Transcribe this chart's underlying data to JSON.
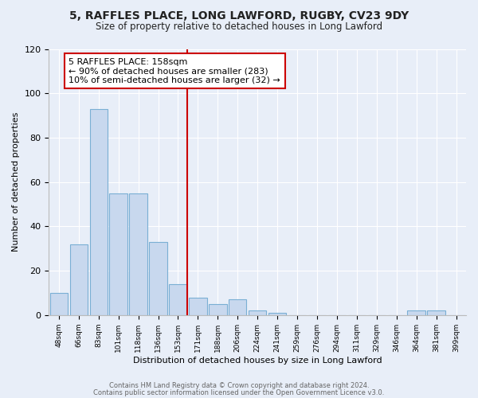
{
  "title": "5, RAFFLES PLACE, LONG LAWFORD, RUGBY, CV23 9DY",
  "subtitle": "Size of property relative to detached houses in Long Lawford",
  "xlabel": "Distribution of detached houses by size in Long Lawford",
  "ylabel": "Number of detached properties",
  "bar_color": "#c8d8ee",
  "bar_edge_color": "#7aafd4",
  "background_color": "#e8eef8",
  "grid_color": "#ffffff",
  "categories": [
    "48sqm",
    "66sqm",
    "83sqm",
    "101sqm",
    "118sqm",
    "136sqm",
    "153sqm",
    "171sqm",
    "188sqm",
    "206sqm",
    "224sqm",
    "241sqm",
    "259sqm",
    "276sqm",
    "294sqm",
    "311sqm",
    "329sqm",
    "346sqm",
    "364sqm",
    "381sqm",
    "399sqm"
  ],
  "values": [
    10,
    32,
    93,
    55,
    55,
    33,
    14,
    8,
    5,
    7,
    2,
    1,
    0,
    0,
    0,
    0,
    0,
    0,
    2,
    2,
    0
  ],
  "vline_x_index": 6,
  "vline_color": "#cc0000",
  "annotation_title": "5 RAFFLES PLACE: 158sqm",
  "annotation_line1": "← 90% of detached houses are smaller (283)",
  "annotation_line2": "10% of semi-detached houses are larger (32) →",
  "ylim": [
    0,
    120
  ],
  "yticks": [
    0,
    20,
    40,
    60,
    80,
    100,
    120
  ],
  "footer1": "Contains HM Land Registry data © Crown copyright and database right 2024.",
  "footer2": "Contains public sector information licensed under the Open Government Licence v3.0."
}
